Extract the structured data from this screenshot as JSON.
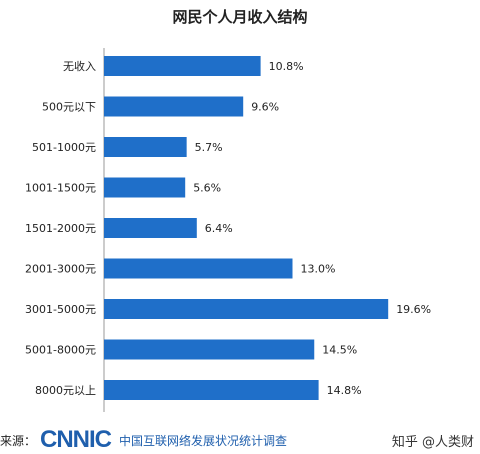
{
  "chart_data": {
    "type": "bar",
    "orientation": "horizontal",
    "title": "网民个人月收入结构",
    "categories": [
      "无收入",
      "500元以下",
      "501-1000元",
      "1001-1500元",
      "1501-2000元",
      "2001-3000元",
      "3001-5000元",
      "5001-8000元",
      "8000元以上"
    ],
    "values": [
      10.8,
      9.6,
      5.7,
      5.6,
      6.4,
      13.0,
      19.6,
      14.5,
      14.8
    ],
    "value_labels": [
      "10.8%",
      "9.6%",
      "5.7%",
      "5.6%",
      "6.4%",
      "13.0%",
      "19.6%",
      "14.5%",
      "14.8%"
    ],
    "bar_color": "#1f6fc9",
    "xlim": [
      0,
      20
    ],
    "grid": false,
    "legend": "none"
  },
  "footer": {
    "source_label": "来源：",
    "logo_text": "CNNIC",
    "org_name": "中国互联网络发展状况统计调查",
    "watermark": "知乎 @人类财"
  }
}
